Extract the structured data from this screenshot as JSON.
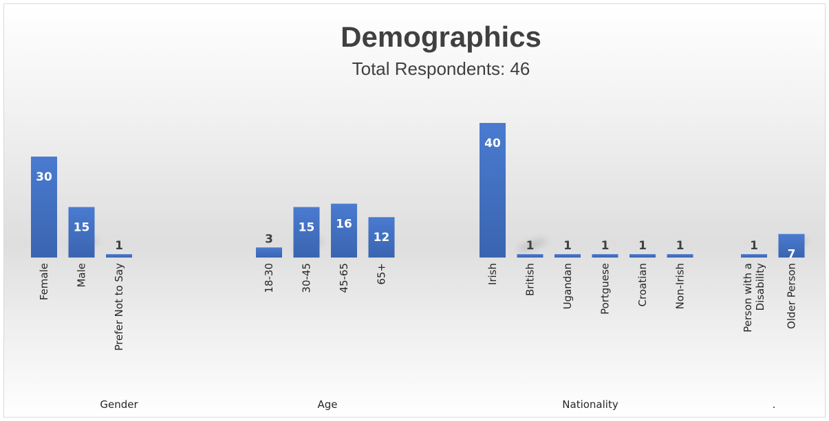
{
  "chart_data": {
    "type": "bar",
    "title": "Demographics",
    "subtitle": "Total Respondents: 46",
    "legend": "none",
    "grid": false,
    "color": "#4472c4",
    "ylim": [
      0,
      40
    ],
    "groups": [
      {
        "name": "Gender",
        "categories": [
          [
            "Female"
          ],
          [
            "Male"
          ],
          [
            "Prefer Not to Say"
          ]
        ],
        "values": [
          30,
          15,
          1
        ]
      },
      {
        "name": "Age",
        "categories": [
          [
            "18-30"
          ],
          [
            "30-45"
          ],
          [
            "45-65"
          ],
          [
            "65+"
          ]
        ],
        "values": [
          3,
          15,
          16,
          12
        ]
      },
      {
        "name": "Nationality",
        "categories": [
          [
            "Irish"
          ],
          [
            "British"
          ],
          [
            "Ugandan"
          ],
          [
            "Portguese"
          ],
          [
            "Croatian"
          ],
          [
            "Non-Irish"
          ]
        ],
        "values": [
          40,
          1,
          1,
          1,
          1,
          1
        ]
      },
      {
        "name": ".",
        "categories": [
          [
            "Person with a",
            "Disability"
          ],
          [
            "Older Person"
          ]
        ],
        "values": [
          1,
          7
        ]
      }
    ]
  }
}
